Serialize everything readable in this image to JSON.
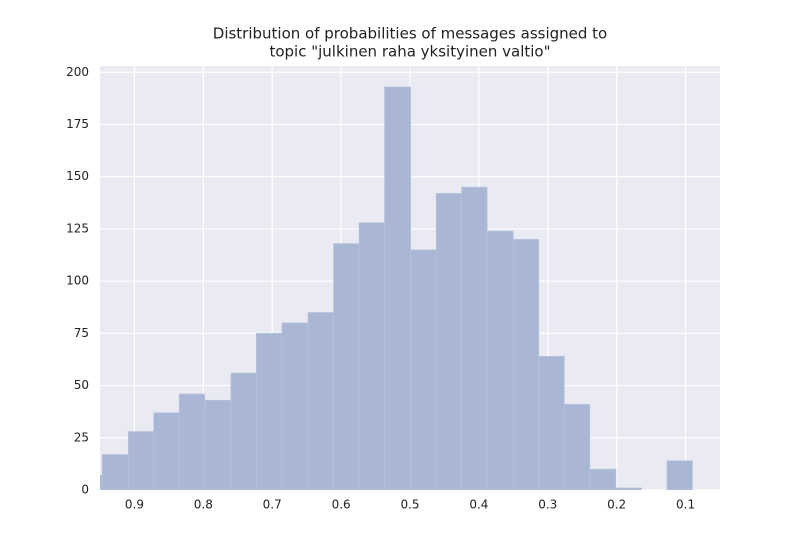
{
  "chart_data": {
    "type": "histogram",
    "title": [
      "Distribution of probabilities of messages assigned to",
      "topic \"julkinen raha yksityinen valtio\""
    ],
    "bins": [
      0.984,
      0.947,
      0.909,
      0.872,
      0.835,
      0.798,
      0.76,
      0.723,
      0.686,
      0.648,
      0.611,
      0.574,
      0.537,
      0.499,
      0.462,
      0.425,
      0.388,
      0.35,
      0.313,
      0.276,
      0.239,
      0.201,
      0.164,
      0.127,
      0.09
    ],
    "values": [
      7,
      17,
      28,
      37,
      46,
      43,
      56,
      75,
      80,
      85,
      118,
      128,
      193,
      115,
      142,
      145,
      124,
      120,
      64,
      41,
      10,
      1,
      0,
      14
    ],
    "color": "#a9b7d5",
    "xlim": [
      0.95,
      0.05
    ],
    "xticks": [
      0.9,
      0.8,
      0.7,
      0.6,
      0.5,
      0.4,
      0.3,
      0.2,
      0.1
    ],
    "ylim": [
      0,
      203
    ],
    "yticks": [
      0,
      25,
      50,
      75,
      100,
      125,
      150,
      175,
      200
    ],
    "grid": true
  }
}
